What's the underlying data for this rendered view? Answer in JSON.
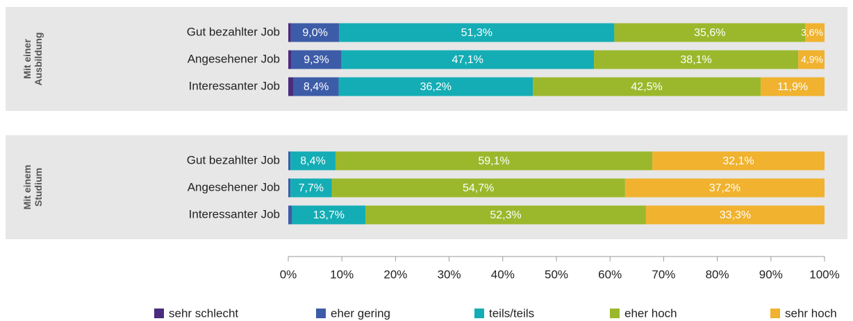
{
  "chart_data": {
    "type": "bar",
    "orientation": "horizontal",
    "stacked": true,
    "groups": [
      {
        "label": [
          "Mit einer",
          "Ausbildung"
        ],
        "categories": [
          "Gut bezahlter Job",
          "Angesehener Job",
          "Interessanter Job"
        ]
      },
      {
        "label": [
          "Mit einem",
          "Studium"
        ],
        "categories": [
          "Gut bezahlter Job",
          "Angesehener Job",
          "Interessanter Job"
        ]
      }
    ],
    "series": [
      {
        "name": "sehr schlecht",
        "color": "#4a2c7e",
        "values": [
          [
            0.5,
            0.6,
            1.0
          ],
          [
            0,
            0,
            0
          ]
        ],
        "value_labels": [
          [
            null,
            null,
            null
          ],
          [
            null,
            null,
            null
          ]
        ]
      },
      {
        "name": "eher gering",
        "color": "#3d5ca8",
        "values": [
          [
            9.0,
            9.3,
            8.4
          ],
          [
            0.4,
            0.4,
            0.7
          ]
        ],
        "value_labels": [
          [
            "9,0%",
            "9,3%",
            "8,4%"
          ],
          [
            null,
            null,
            null
          ]
        ]
      },
      {
        "name": "teils/teils",
        "color": "#14adb5",
        "values": [
          [
            51.3,
            47.1,
            36.2
          ],
          [
            8.4,
            7.7,
            13.7
          ]
        ],
        "value_labels": [
          [
            "51,3%",
            "47,1%",
            "36,2%"
          ],
          [
            "8,4%",
            "7,7%",
            "13,7%"
          ]
        ]
      },
      {
        "name": "eher hoch",
        "color": "#9bb82c",
        "values": [
          [
            35.6,
            38.1,
            42.5
          ],
          [
            59.1,
            54.7,
            52.3
          ]
        ],
        "value_labels": [
          [
            "35,6%",
            "38,1%",
            "42,5%"
          ],
          [
            "59,1%",
            "54,7%",
            "52,3%"
          ]
        ]
      },
      {
        "name": "sehr hoch",
        "color": "#f0b22f",
        "values": [
          [
            3.6,
            4.9,
            11.9
          ],
          [
            32.1,
            37.2,
            33.3
          ]
        ],
        "value_labels": [
          [
            "3,6%",
            "4,9%",
            "11,9%"
          ],
          [
            "32,1%",
            "37,2%",
            "33,3%"
          ]
        ]
      }
    ],
    "xlim": [
      0,
      100
    ],
    "xticks": [
      {
        "value": 0,
        "label": "0%"
      },
      {
        "value": 10,
        "label": "10%"
      },
      {
        "value": 20,
        "label": "20%"
      },
      {
        "value": 30,
        "label": "30%"
      },
      {
        "value": 40,
        "label": "40%"
      },
      {
        "value": 50,
        "label": "50%"
      },
      {
        "value": 60,
        "label": "60%"
      },
      {
        "value": 70,
        "label": "70%"
      },
      {
        "value": 80,
        "label": "80%"
      },
      {
        "value": 90,
        "label": "90%"
      },
      {
        "value": 100,
        "label": "100%"
      }
    ]
  }
}
